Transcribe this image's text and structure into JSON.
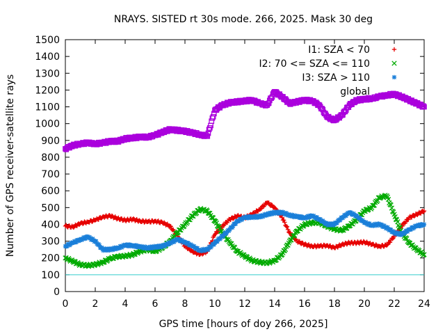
{
  "chart_data": {
    "type": "scatter",
    "title": "NRAYS. SISTED rt 30s mode. 266, 2025. Mask 30 deg",
    "xlabel": "GPS time [hours of doy 266, 2025]",
    "ylabel": "Number of GPS receiver-satellite rays",
    "xlim": [
      0,
      24
    ],
    "ylim": [
      0,
      1500
    ],
    "xticks": [
      "0",
      "2",
      "4",
      "6",
      "8",
      "10",
      "12",
      "14",
      "16",
      "18",
      "20",
      "22",
      "24"
    ],
    "yticks": [
      "0",
      "100",
      "200",
      "300",
      "400",
      "500",
      "600",
      "700",
      "800",
      "900",
      "1000",
      "1100",
      "1200",
      "1300",
      "1400",
      "1500"
    ],
    "threshold_line": {
      "y": 100,
      "color": "#33cccc"
    },
    "legend_position": "top-right",
    "series": [
      {
        "name": "I1: SZA < 70",
        "symbol": "+",
        "color": "#e60000",
        "x": [
          0,
          0.5,
          1,
          1.5,
          2,
          2.5,
          3,
          3.5,
          4,
          4.5,
          5,
          5.5,
          6,
          6.5,
          7,
          7.5,
          8,
          8.5,
          9,
          9.5,
          10,
          10.5,
          11,
          11.5,
          12,
          12.5,
          13,
          13.5,
          14,
          14.5,
          15,
          15.5,
          16,
          16.5,
          17,
          17.5,
          18,
          18.5,
          19,
          19.5,
          20,
          20.5,
          21,
          21.5,
          22,
          22.5,
          23,
          23.5,
          24
        ],
        "y": [
          390,
          385,
          405,
          415,
          425,
          445,
          450,
          435,
          425,
          430,
          420,
          415,
          420,
          410,
          390,
          330,
          270,
          240,
          220,
          240,
          340,
          390,
          430,
          450,
          440,
          460,
          490,
          530,
          500,
          440,
          350,
          300,
          280,
          270,
          270,
          275,
          260,
          280,
          290,
          290,
          295,
          280,
          270,
          275,
          330,
          390,
          440,
          460,
          480
        ]
      },
      {
        "name": "I2: 70 <= SZA <= 110",
        "symbol": "x",
        "color": "#00aa00",
        "x": [
          0,
          0.5,
          1,
          1.5,
          2,
          2.5,
          3,
          3.5,
          4,
          4.5,
          5,
          5.5,
          6,
          6.5,
          7,
          7.5,
          8,
          8.5,
          9,
          9.5,
          10,
          10.5,
          11,
          11.5,
          12,
          12.5,
          13,
          13.5,
          14,
          14.5,
          15,
          15.5,
          16,
          16.5,
          17,
          17.5,
          18,
          18.5,
          19,
          19.5,
          20,
          20.5,
          21,
          21.5,
          22,
          22.5,
          23,
          23.5,
          24
        ],
        "y": [
          200,
          180,
          160,
          155,
          160,
          175,
          195,
          210,
          210,
          220,
          240,
          250,
          240,
          260,
          300,
          350,
          400,
          450,
          490,
          480,
          420,
          350,
          290,
          240,
          210,
          185,
          175,
          170,
          185,
          220,
          300,
          360,
          400,
          410,
          410,
          390,
          370,
          365,
          390,
          430,
          480,
          500,
          560,
          570,
          460,
          350,
          290,
          250,
          220
        ]
      },
      {
        "name": "I3: SZA > 110",
        "symbol": "*",
        "color": "#1a7fd9",
        "x": [
          0,
          0.5,
          1,
          1.5,
          2,
          2.5,
          3,
          3.5,
          4,
          4.5,
          5,
          5.5,
          6,
          6.5,
          7,
          7.5,
          8,
          8.5,
          9,
          9.5,
          10,
          10.5,
          11,
          11.5,
          12,
          12.5,
          13,
          13.5,
          14,
          14.5,
          15,
          15.5,
          16,
          16.5,
          17,
          17.5,
          18,
          18.5,
          19,
          19.5,
          20,
          20.5,
          21,
          21.5,
          22,
          22.5,
          23,
          23.5,
          24
        ],
        "y": [
          270,
          290,
          310,
          325,
          300,
          250,
          250,
          260,
          275,
          275,
          265,
          260,
          265,
          270,
          290,
          310,
          295,
          270,
          245,
          250,
          290,
          330,
          370,
          420,
          440,
          445,
          445,
          460,
          470,
          470,
          455,
          445,
          440,
          450,
          430,
          400,
          400,
          440,
          470,
          450,
          410,
          395,
          400,
          380,
          350,
          340,
          370,
          390,
          400
        ]
      },
      {
        "name": "global",
        "symbol": "square",
        "color": "#aa00dd",
        "x": [
          0,
          0.5,
          1,
          1.5,
          2,
          2.5,
          3,
          3.5,
          4,
          4.5,
          5,
          5.5,
          6,
          6.5,
          7,
          7.5,
          8,
          8.5,
          9,
          9.5,
          10,
          10.5,
          11,
          11.5,
          12,
          12.5,
          13,
          13.5,
          14,
          14.5,
          15,
          15.5,
          16,
          16.5,
          17,
          17.5,
          18,
          18.5,
          19,
          19.5,
          20,
          20.5,
          21,
          21.5,
          22,
          22.5,
          23,
          23.5,
          24
        ],
        "y": [
          850,
          870,
          880,
          885,
          880,
          885,
          895,
          895,
          910,
          915,
          920,
          920,
          930,
          950,
          965,
          960,
          955,
          945,
          935,
          925,
          1080,
          1110,
          1125,
          1130,
          1135,
          1140,
          1120,
          1110,
          1190,
          1160,
          1120,
          1130,
          1140,
          1135,
          1110,
          1040,
          1020,
          1050,
          1110,
          1140,
          1145,
          1150,
          1160,
          1170,
          1175,
          1160,
          1140,
          1120,
          1100
        ]
      }
    ]
  }
}
